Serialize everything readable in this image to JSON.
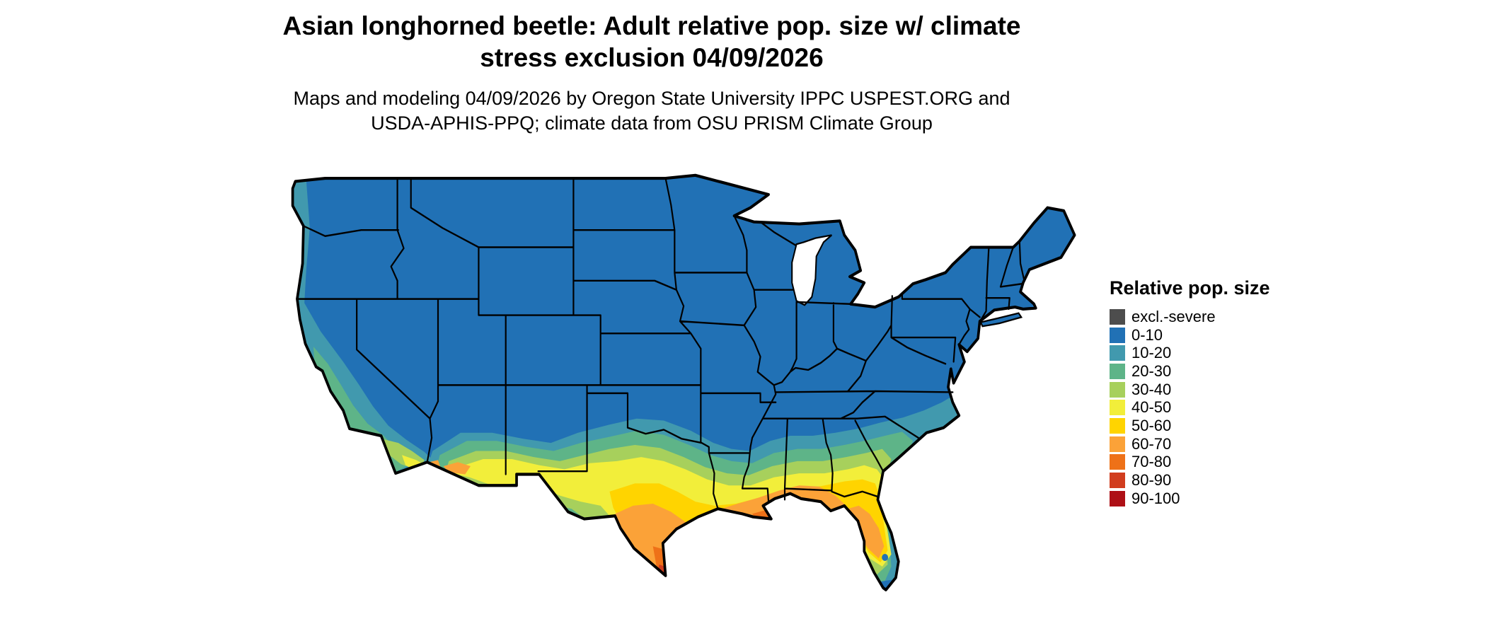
{
  "title": {
    "line1": "Asian longhorned beetle: Adult relative pop. size w/ climate",
    "line2": "stress exclusion 04/09/2026"
  },
  "subtitle": {
    "line1": "Maps and modeling 04/09/2026 by Oregon State University IPPC USPEST.ORG and",
    "line2": "USDA-APHIS-PPQ; climate data from OSU PRISM Climate Group"
  },
  "legend": {
    "title": "Relative pop. size",
    "items": [
      {
        "range": "excl.-severe",
        "color": "#4d4d4d"
      },
      {
        "range": "0-10",
        "color": "#2171b5"
      },
      {
        "range": "10-20",
        "color": "#4199ae"
      },
      {
        "range": "20-30",
        "color": "#5eb488"
      },
      {
        "range": "30-40",
        "color": "#a7d05c"
      },
      {
        "range": "40-50",
        "color": "#f2ee3a"
      },
      {
        "range": "50-60",
        "color": "#ffd400"
      },
      {
        "range": "60-70",
        "color": "#fba238"
      },
      {
        "range": "70-80",
        "color": "#ee7118"
      },
      {
        "range": "80-90",
        "color": "#d13d1e"
      },
      {
        "range": "90-100",
        "color": "#ae1016"
      }
    ]
  },
  "map": {
    "region": "Continental United States",
    "water_color": "#ffffff",
    "border_color": "#000000"
  }
}
